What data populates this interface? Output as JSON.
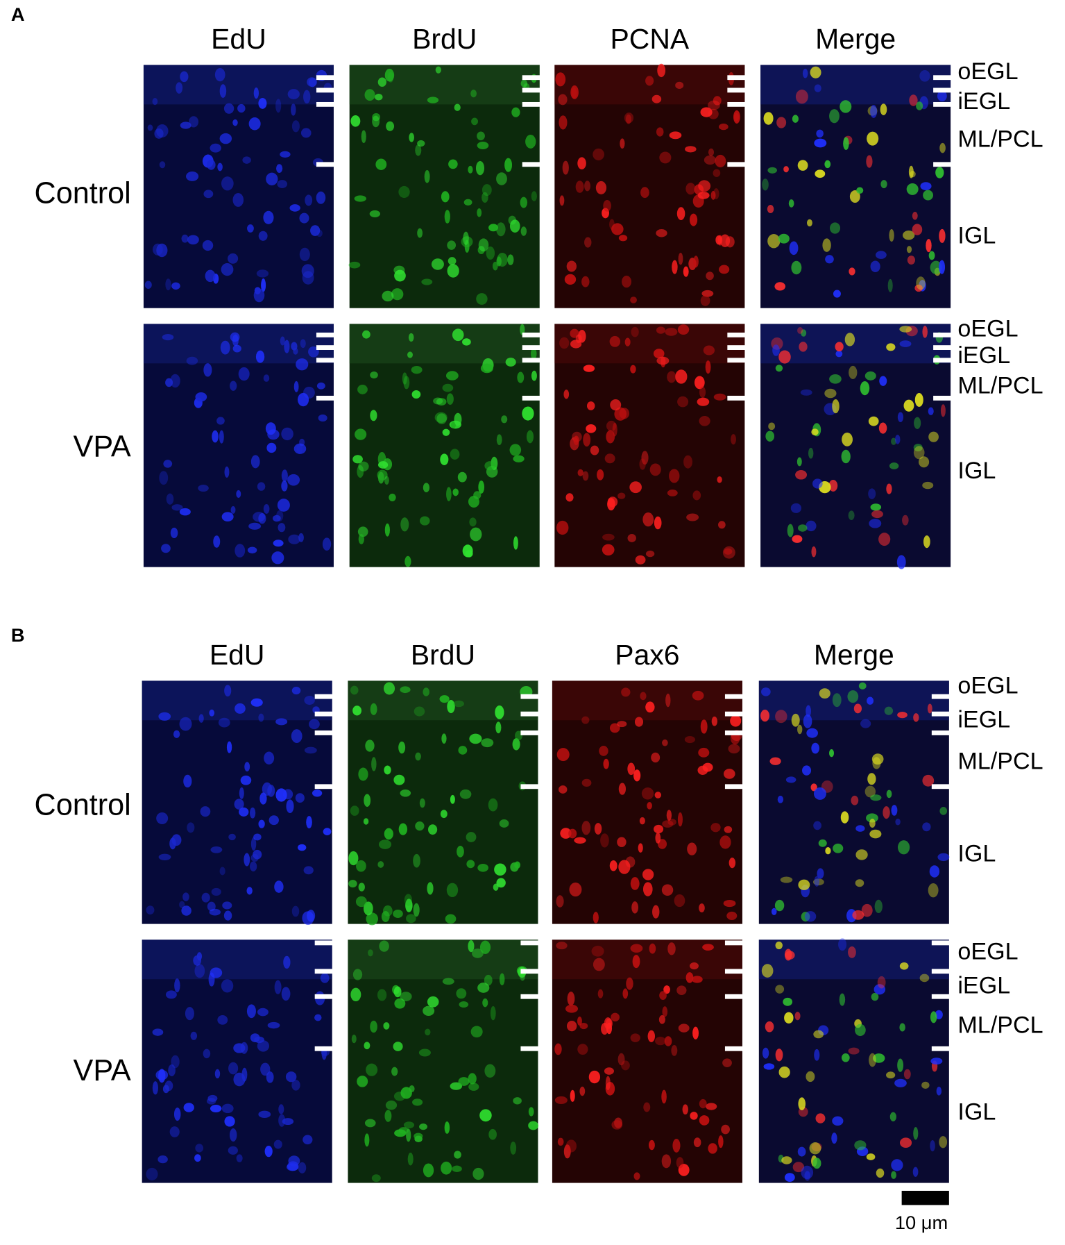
{
  "panels": [
    {
      "label": "A",
      "columns": [
        "EdU",
        "BrdU",
        "PCNA",
        "Merge"
      ],
      "rows": [
        "Control",
        "VPA"
      ],
      "layers": [
        [
          "oEGL",
          "iEGL",
          "ML/PCL",
          "IGL"
        ],
        [
          "oEGL",
          "iEGL",
          "ML/PCL",
          "IGL"
        ]
      ]
    },
    {
      "label": "B",
      "columns": [
        "EdU",
        "BrdU",
        "Pax6",
        "Merge"
      ],
      "rows": [
        "Control",
        "VPA"
      ],
      "layers": [
        [
          "oEGL",
          "iEGL",
          "ML/PCL",
          "IGL"
        ],
        [
          "oEGL",
          "iEGL",
          "ML/PCL",
          "IGL"
        ]
      ]
    }
  ],
  "scale_bar": "10 μm"
}
